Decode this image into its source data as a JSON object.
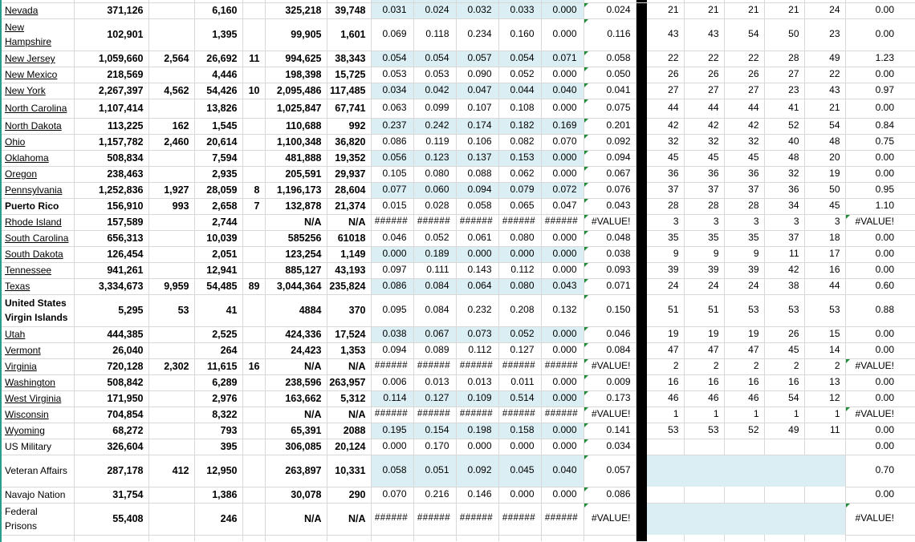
{
  "app": {
    "kind_label": "spreadsheet-grid",
    "visible_header": ""
  },
  "colors": {
    "band_blue": "#DAEEF3",
    "gridline_gray": "#D8D8D8",
    "separator_black": "#000000",
    "left_edge_teal": "#2A9D8F",
    "error_triangle_green": "#1F8B3B",
    "text": "#000000"
  },
  "icons": {
    "error_indicator": "green-corner-triangle-icon"
  },
  "grid": {
    "rows": [
      {
        "name": "Nevada",
        "name_style": "link",
        "band": false,
        "values": [
          "371,126",
          "",
          "6,160",
          "",
          "325,218",
          "39,748",
          "0.031",
          "0.024",
          "0.032",
          "0.033",
          "0.000",
          "0.024",
          "21",
          "21",
          "21",
          "21",
          "24",
          "0.00"
        ]
      },
      {
        "name": "New Hampshire",
        "name_style": "link",
        "band": false,
        "values": [
          "102,901",
          "",
          "1,395",
          "",
          "99,905",
          "1,601",
          "0.069",
          "0.118",
          "0.234",
          "0.160",
          "0.000",
          "0.116",
          "43",
          "43",
          "54",
          "50",
          "23",
          "0.00"
        ]
      },
      {
        "name": "New Jersey",
        "name_style": "link",
        "band": false,
        "values": [
          "1,059,660",
          "2,564",
          "26,692",
          "11",
          "994,625",
          "38,343",
          "0.054",
          "0.054",
          "0.057",
          "0.054",
          "0.071",
          "0.058",
          "22",
          "22",
          "22",
          "28",
          "49",
          "1.23"
        ]
      },
      {
        "name": "New Mexico",
        "name_style": "link",
        "band": false,
        "values": [
          "218,569",
          "",
          "4,446",
          "",
          "198,398",
          "15,725",
          "0.053",
          "0.053",
          "0.090",
          "0.052",
          "0.000",
          "0.050",
          "26",
          "26",
          "26",
          "27",
          "22",
          "0.00"
        ]
      },
      {
        "name": "New York",
        "name_style": "link",
        "band": false,
        "values": [
          "2,267,397",
          "4,562",
          "54,426",
          "10",
          "2,095,486",
          "117,485",
          "0.034",
          "0.042",
          "0.047",
          "0.044",
          "0.040",
          "0.041",
          "27",
          "27",
          "27",
          "23",
          "43",
          "0.97"
        ]
      },
      {
        "name": "North Carolina",
        "name_style": "link",
        "band": false,
        "values": [
          "1,107,414",
          "",
          "13,826",
          "",
          "1,025,847",
          "67,741",
          "0.063",
          "0.099",
          "0.107",
          "0.108",
          "0.000",
          "0.075",
          "44",
          "44",
          "44",
          "41",
          "21",
          "0.00"
        ]
      },
      {
        "name": "North Dakota",
        "name_style": "link",
        "band": false,
        "values": [
          "113,225",
          "162",
          "1,545",
          "",
          "110,688",
          "992",
          "0.237",
          "0.242",
          "0.174",
          "0.182",
          "0.169",
          "0.201",
          "42",
          "42",
          "42",
          "52",
          "54",
          "0.84"
        ]
      },
      {
        "name": "Ohio",
        "name_style": "link",
        "band": false,
        "values": [
          "1,157,782",
          "2,460",
          "20,614",
          "",
          "1,100,348",
          "36,820",
          "0.086",
          "0.119",
          "0.106",
          "0.082",
          "0.070",
          "0.092",
          "32",
          "32",
          "32",
          "40",
          "48",
          "0.75"
        ]
      },
      {
        "name": "Oklahoma",
        "name_style": "link",
        "band": false,
        "values": [
          "508,834",
          "",
          "7,594",
          "",
          "481,888",
          "19,352",
          "0.056",
          "0.123",
          "0.137",
          "0.153",
          "0.000",
          "0.094",
          "45",
          "45",
          "45",
          "48",
          "20",
          "0.00"
        ]
      },
      {
        "name": "Oregon",
        "name_style": "link",
        "band": false,
        "values": [
          "238,463",
          "",
          "2,935",
          "",
          "205,591",
          "29,937",
          "0.105",
          "0.080",
          "0.088",
          "0.062",
          "0.000",
          "0.067",
          "36",
          "36",
          "36",
          "32",
          "19",
          "0.00"
        ]
      },
      {
        "name": "Pennsylvania",
        "name_style": "link",
        "band": false,
        "values": [
          "1,252,836",
          "1,927",
          "28,059",
          "8",
          "1,196,173",
          "28,604",
          "0.077",
          "0.060",
          "0.094",
          "0.079",
          "0.072",
          "0.076",
          "37",
          "37",
          "37",
          "36",
          "50",
          "0.95"
        ]
      },
      {
        "name": "Puerto Rico",
        "name_style": "bold",
        "band": false,
        "values": [
          "156,910",
          "993",
          "2,658",
          "7",
          "132,878",
          "21,374",
          "0.015",
          "0.028",
          "0.058",
          "0.065",
          "0.047",
          "0.043",
          "28",
          "28",
          "28",
          "34",
          "45",
          "1.10"
        ]
      },
      {
        "name": "Rhode Island",
        "name_style": "link",
        "band": false,
        "values": [
          "157,589",
          "",
          "2,744",
          "",
          "N/A",
          "N/A",
          "######",
          "######",
          "######",
          "######",
          "######",
          "#VALUE!",
          "3",
          "3",
          "3",
          "3",
          "3",
          "#VALUE!"
        ]
      },
      {
        "name": "South Carolina",
        "name_style": "link",
        "band": false,
        "values": [
          "656,313",
          "",
          "10,039",
          "",
          "585256",
          "61018",
          "0.046",
          "0.052",
          "0.061",
          "0.080",
          "0.000",
          "0.048",
          "35",
          "35",
          "35",
          "37",
          "18",
          "0.00"
        ]
      },
      {
        "name": "South Dakota",
        "name_style": "link",
        "band": false,
        "values": [
          "126,454",
          "",
          "2,051",
          "",
          "123,254",
          "1,149",
          "0.000",
          "0.189",
          "0.000",
          "0.000",
          "0.000",
          "0.038",
          "9",
          "9",
          "9",
          "11",
          "17",
          "0.00"
        ]
      },
      {
        "name": "Tennessee",
        "name_style": "link",
        "band": false,
        "values": [
          "941,261",
          "",
          "12,941",
          "",
          "885,127",
          "43,193",
          "0.097",
          "0.111",
          "0.143",
          "0.112",
          "0.000",
          "0.093",
          "39",
          "39",
          "39",
          "42",
          "16",
          "0.00"
        ]
      },
      {
        "name": "Texas",
        "name_style": "link",
        "band": false,
        "values": [
          "3,334,673",
          "9,959",
          "54,485",
          "89",
          "3,044,364",
          "235,824",
          "0.086",
          "0.084",
          "0.064",
          "0.080",
          "0.043",
          "0.071",
          "24",
          "24",
          "24",
          "38",
          "44",
          "0.60"
        ]
      },
      {
        "name": "United States Virgin Islands",
        "name_style": "bold",
        "band": false,
        "values": [
          "5,295",
          "53",
          "41",
          "",
          "4884",
          "370",
          "0.095",
          "0.084",
          "0.232",
          "0.208",
          "0.132",
          "0.150",
          "51",
          "51",
          "53",
          "53",
          "53",
          "0.88"
        ]
      },
      {
        "name": "Utah",
        "name_style": "link",
        "band": false,
        "values": [
          "444,385",
          "",
          "2,525",
          "",
          "424,336",
          "17,524",
          "0.038",
          "0.067",
          "0.073",
          "0.052",
          "0.000",
          "0.046",
          "19",
          "19",
          "19",
          "26",
          "15",
          "0.00"
        ]
      },
      {
        "name": "Vermont",
        "name_style": "link",
        "band": false,
        "values": [
          "26,040",
          "",
          "264",
          "",
          "24,423",
          "1,353",
          "0.094",
          "0.089",
          "0.112",
          "0.127",
          "0.000",
          "0.084",
          "47",
          "47",
          "47",
          "45",
          "14",
          "0.00"
        ]
      },
      {
        "name": "Virginia",
        "name_style": "link",
        "band": false,
        "values": [
          "720,128",
          "2,302",
          "11,615",
          "16",
          "N/A",
          "N/A",
          "######",
          "######",
          "######",
          "######",
          "######",
          "#VALUE!",
          "2",
          "2",
          "2",
          "2",
          "2",
          "#VALUE!"
        ]
      },
      {
        "name": "Washington",
        "name_style": "link",
        "band": false,
        "values": [
          "508,842",
          "",
          "6,289",
          "",
          "238,596",
          "263,957",
          "0.006",
          "0.013",
          "0.013",
          "0.011",
          "0.000",
          "0.009",
          "16",
          "16",
          "16",
          "16",
          "13",
          "0.00"
        ]
      },
      {
        "name": "West Virginia",
        "name_style": "link",
        "band": false,
        "values": [
          "171,950",
          "",
          "2,976",
          "",
          "163,662",
          "5,312",
          "0.114",
          "0.127",
          "0.109",
          "0.514",
          "0.000",
          "0.173",
          "46",
          "46",
          "46",
          "54",
          "12",
          "0.00"
        ]
      },
      {
        "name": "Wisconsin",
        "name_style": "link",
        "band": false,
        "values": [
          "704,854",
          "",
          "8,322",
          "",
          "N/A",
          "N/A",
          "######",
          "######",
          "######",
          "######",
          "######",
          "#VALUE!",
          "1",
          "1",
          "1",
          "1",
          "1",
          "#VALUE!"
        ]
      },
      {
        "name": "Wyoming",
        "name_style": "link",
        "band": false,
        "values": [
          "68,272",
          "",
          "793",
          "",
          "65,391",
          "2088",
          "0.195",
          "0.154",
          "0.198",
          "0.158",
          "0.000",
          "0.141",
          "53",
          "53",
          "52",
          "49",
          "11",
          "0.00"
        ]
      },
      {
        "name": "US Military",
        "name_style": "plain",
        "band": false,
        "values": [
          "326,604",
          "",
          "395",
          "",
          "306,085",
          "20,124",
          "0.000",
          "0.170",
          "0.000",
          "0.000",
          "0.000",
          "0.034",
          "",
          "",
          "",
          "",
          "",
          "0.00"
        ]
      },
      {
        "name": "Veteran Affairs",
        "name_style": "plain",
        "band": true,
        "values": [
          "287,178",
          "412",
          "12,950",
          "",
          "263,897",
          "10,331",
          "0.058",
          "0.051",
          "0.092",
          "0.045",
          "0.040",
          "0.057",
          "",
          "",
          "",
          "",
          "",
          "0.70"
        ]
      },
      {
        "name": "Navajo Nation",
        "name_style": "plain",
        "band": false,
        "values": [
          "31,754",
          "",
          "1,386",
          "",
          "30,078",
          "290",
          "0.070",
          "0.216",
          "0.146",
          "0.000",
          "0.000",
          "0.086",
          "",
          "",
          "",
          "",
          "",
          "0.00"
        ]
      },
      {
        "name": "Federal Prisons",
        "name_style": "plain",
        "band": true,
        "values": [
          "55,408",
          "",
          "246",
          "",
          "N/A",
          "N/A",
          "######",
          "######",
          "######",
          "######",
          "######",
          "#VALUE!",
          "",
          "",
          "",
          "",
          "",
          "#VALUE!"
        ]
      }
    ]
  }
}
